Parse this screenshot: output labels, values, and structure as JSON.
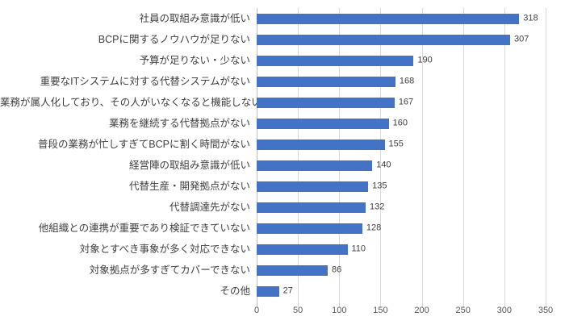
{
  "chart_data": {
    "type": "bar",
    "orientation": "horizontal",
    "title": "",
    "xlabel": "",
    "ylabel": "",
    "categories": [
      "社員の取組み意識が低い",
      "BCPに関するノウハウが足りない",
      "予算が足りない・少ない",
      "重要なITシステムに対する代替システムがない",
      "業務が属人化しており、その人がいなくなると機能しない",
      "業務を継続する代替拠点がない",
      "普段の業務が忙しすぎてBCPに割く時間がない",
      "経営陣の取組み意識が低い",
      "代替生産・開発拠点がない",
      "代替調達先がない",
      "他組織との連携が重要であり検証できていない",
      "対象とすべき事象が多く対応できない",
      "対象拠点が多すぎてカバーできない",
      "その他"
    ],
    "values": [
      318,
      307,
      190,
      168,
      167,
      160,
      155,
      140,
      135,
      132,
      128,
      110,
      86,
      27
    ],
    "xlim": [
      0,
      350
    ],
    "xticks": [
      0,
      50,
      100,
      150,
      200,
      250,
      300,
      350
    ],
    "grid": true,
    "legend": "none",
    "bar_color": "#4472c4",
    "gridline_color": "#d9d9d9",
    "tick_label_color": "#595959",
    "value_label_color": "#404040"
  }
}
